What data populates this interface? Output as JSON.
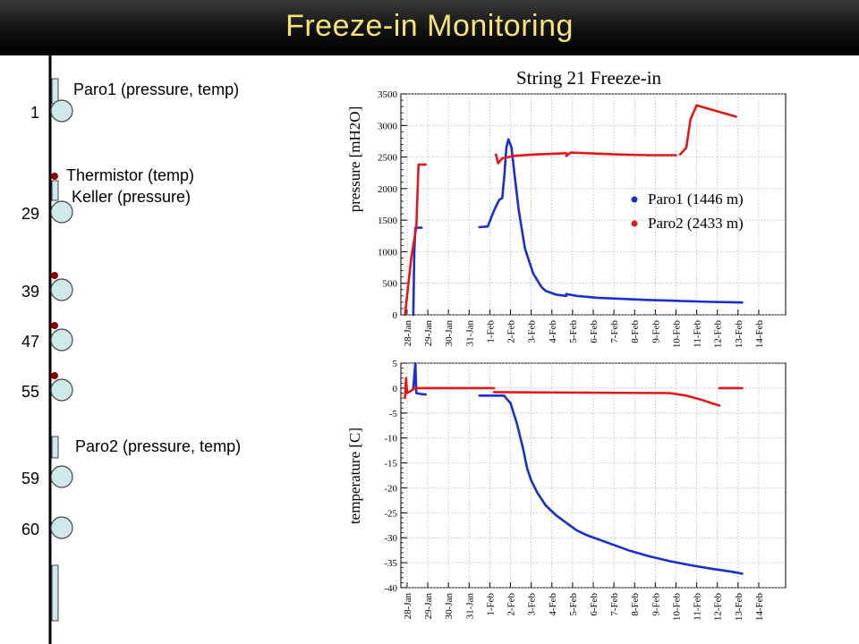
{
  "page": {
    "title": "Freeze-in Monitoring"
  },
  "string_diagram": {
    "dom_labels": [
      "1",
      "29",
      "39",
      "47",
      "55",
      "59",
      "60"
    ],
    "sensors": [
      {
        "label": "Paro1 (pressure, temp)"
      },
      {
        "label": "Thermistor (temp)"
      },
      {
        "label": "Keller (pressure)"
      },
      {
        "label": "Paro2 (pressure, temp)"
      }
    ],
    "colors": {
      "dom": "#cfe8ea",
      "thermistor": "#8b0000",
      "cable": "#000000"
    }
  },
  "chart_data": [
    {
      "type": "line",
      "title": "String 21 Freeze-in",
      "ylabel": "pressure [mH2O]",
      "ylim": [
        0,
        3500
      ],
      "yticks": [
        0,
        500,
        1000,
        1500,
        2000,
        2500,
        3000,
        3500
      ],
      "x_categories": [
        "28-Jan",
        "29-Jan",
        "30-Jan",
        "31-Jan",
        "1-Feb",
        "2-Feb",
        "3-Feb",
        "4-Feb",
        "5-Feb",
        "6-Feb",
        "7-Feb",
        "8-Feb",
        "9-Feb",
        "10-Feb",
        "11-Feb",
        "12-Feb",
        "13-Feb",
        "14-Feb"
      ],
      "grid": true,
      "legend_position": "right",
      "series": [
        {
          "name": "Paro1 (1446 m)",
          "color": "#1a2fd0",
          "segments": [
            [
              [
                0.6,
                0
              ],
              [
                0.65,
                1000
              ],
              [
                0.7,
                1380
              ],
              [
                1.0,
                1380
              ]
            ],
            [
              [
                3.8,
                1390
              ],
              [
                4.2,
                1400
              ]
            ],
            [
              [
                4.2,
                1400
              ],
              [
                4.5,
                1650
              ],
              [
                4.75,
                1820
              ],
              [
                4.9,
                1850
              ],
              [
                5.0,
                2200
              ],
              [
                5.1,
                2650
              ],
              [
                5.2,
                2780
              ],
              [
                5.35,
                2650
              ],
              [
                5.5,
                2200
              ],
              [
                5.7,
                1650
              ],
              [
                6.0,
                1050
              ],
              [
                6.4,
                650
              ],
              [
                6.8,
                440
              ],
              [
                7.0,
                380
              ],
              [
                7.5,
                320
              ],
              [
                8.0,
                300
              ]
            ],
            [
              [
                8.0,
                330
              ],
              [
                8.5,
                300
              ],
              [
                9.5,
                270
              ],
              [
                11,
                250
              ],
              [
                12,
                235
              ],
              [
                13,
                225
              ],
              [
                14,
                215
              ],
              [
                15,
                205
              ],
              [
                16,
                200
              ],
              [
                16.5,
                195
              ]
            ]
          ]
        },
        {
          "name": "Paro2 (2433 m)",
          "color": "#e01818",
          "segments": [
            [
              [
                0.2,
                0
              ],
              [
                0.5,
                900
              ],
              [
                0.75,
                1400
              ],
              [
                0.85,
                2380
              ],
              [
                1.2,
                2380
              ]
            ],
            [
              [
                4.6,
                2540
              ],
              [
                4.7,
                2400
              ],
              [
                4.9,
                2480
              ],
              [
                5.5,
                2520
              ],
              [
                6.5,
                2540
              ],
              [
                8.0,
                2560
              ]
            ],
            [
              [
                8.0,
                2520
              ],
              [
                8.2,
                2570
              ],
              [
                9.0,
                2560
              ],
              [
                10.5,
                2540
              ],
              [
                12,
                2530
              ],
              [
                13.3,
                2530
              ]
            ],
            [
              [
                13.5,
                2540
              ],
              [
                13.8,
                2650
              ],
              [
                14.0,
                3100
              ],
              [
                14.3,
                3320
              ],
              [
                14.5,
                3300
              ],
              [
                16.2,
                3140
              ]
            ]
          ]
        }
      ]
    },
    {
      "type": "line",
      "ylabel": "temperature [C]",
      "ylim": [
        -40,
        5
      ],
      "yticks": [
        -40,
        -35,
        -30,
        -25,
        -20,
        -15,
        -10,
        -5,
        0,
        5
      ],
      "x_categories": [
        "28-Jan",
        "29-Jan",
        "30-Jan",
        "31-Jan",
        "1-Feb",
        "2-Feb",
        "3-Feb",
        "4-Feb",
        "5-Feb",
        "6-Feb",
        "7-Feb",
        "8-Feb",
        "9-Feb",
        "10-Feb",
        "11-Feb",
        "12-Feb",
        "13-Feb",
        "14-Feb"
      ],
      "grid": true,
      "series": [
        {
          "name": "Paro1 (1446 m)",
          "color": "#1a2fd0",
          "segments": [
            [
              [
                0.6,
                0
              ],
              [
                0.7,
                5
              ],
              [
                0.75,
                -1
              ],
              [
                1.0,
                -1.2
              ],
              [
                1.2,
                -1.3
              ]
            ],
            [
              [
                3.8,
                -1.5
              ],
              [
                5.0,
                -1.5
              ]
            ],
            [
              [
                5.0,
                -1.6
              ],
              [
                5.3,
                -3
              ],
              [
                5.6,
                -7
              ],
              [
                5.9,
                -12
              ],
              [
                6.1,
                -16
              ],
              [
                6.3,
                -18.5
              ],
              [
                6.6,
                -21
              ],
              [
                7.0,
                -23.5
              ],
              [
                7.5,
                -25.5
              ],
              [
                8.0,
                -27
              ],
              [
                8.5,
                -28.5
              ],
              [
                9,
                -29.5
              ],
              [
                10,
                -31
              ],
              [
                11,
                -32.5
              ],
              [
                12,
                -33.7
              ],
              [
                13,
                -34.7
              ],
              [
                14,
                -35.5
              ],
              [
                15,
                -36.2
              ],
              [
                16,
                -36.8
              ],
              [
                16.5,
                -37.2
              ]
            ]
          ]
        },
        {
          "name": "Paro2 (2433 m)",
          "color": "#e01818",
          "segments": [
            [
              [
                0.2,
                -2
              ],
              [
                0.25,
                2
              ],
              [
                0.3,
                -1
              ],
              [
                0.5,
                -0.5
              ],
              [
                0.7,
                0
              ],
              [
                1.3,
                0
              ]
            ],
            [
              [
                1.3,
                0
              ],
              [
                4.5,
                0
              ]
            ],
            [
              [
                4.5,
                -0.8
              ],
              [
                13,
                -1
              ]
            ],
            [
              [
                13,
                -1
              ],
              [
                13.8,
                -1.5
              ],
              [
                14.5,
                -2.3
              ],
              [
                15.0,
                -3.0
              ],
              [
                15.4,
                -3.5
              ]
            ],
            [
              [
                15.4,
                0
              ],
              [
                16.5,
                0
              ]
            ]
          ]
        }
      ]
    }
  ]
}
